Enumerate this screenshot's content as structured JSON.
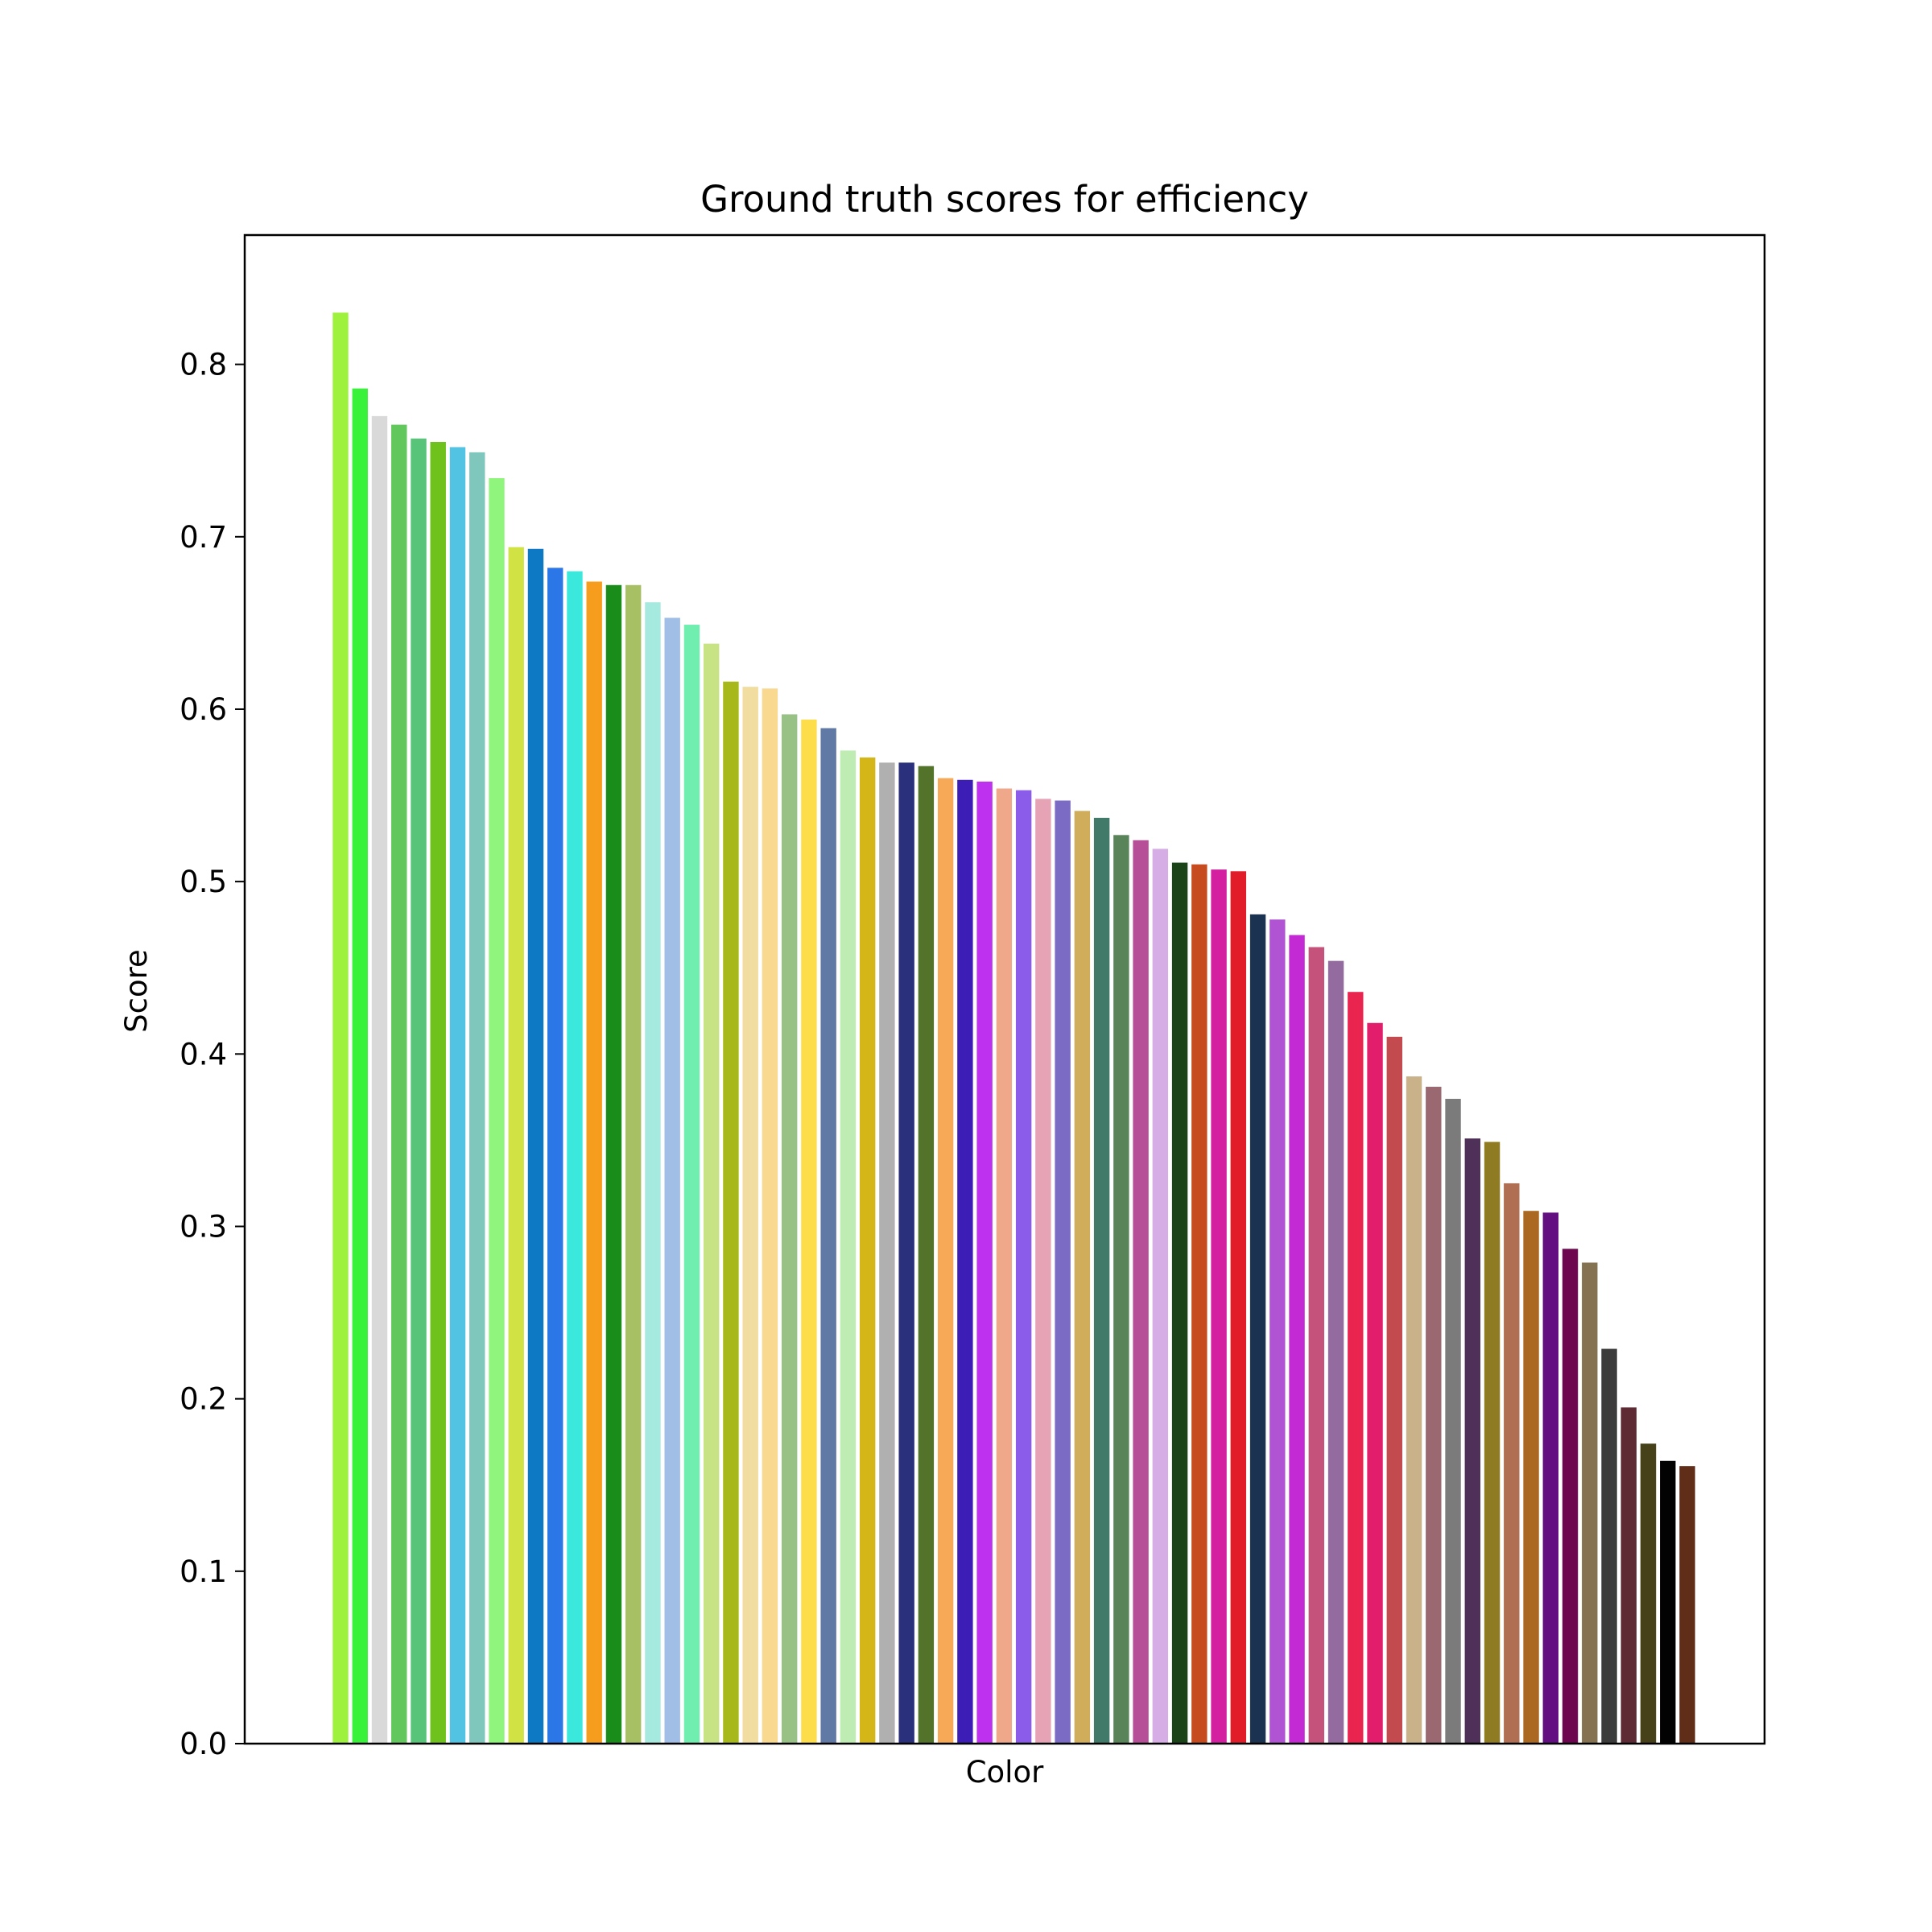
{
  "chart_data": {
    "type": "bar",
    "title": "Ground truth scores for efficiency",
    "xlabel": "Color",
    "ylabel": "Score",
    "ylim": [
      0,
      0.875
    ],
    "yticks": [
      "0.0",
      "0.1",
      "0.2",
      "0.3",
      "0.4",
      "0.5",
      "0.6",
      "0.7",
      "0.8"
    ],
    "grid": false,
    "values": [
      0.83,
      0.786,
      0.77,
      0.765,
      0.757,
      0.755,
      0.752,
      0.749,
      0.734,
      0.694,
      0.693,
      0.682,
      0.68,
      0.674,
      0.672,
      0.672,
      0.662,
      0.653,
      0.649,
      0.638,
      0.616,
      0.613,
      0.612,
      0.597,
      0.594,
      0.589,
      0.576,
      0.572,
      0.569,
      0.569,
      0.567,
      0.56,
      0.559,
      0.558,
      0.554,
      0.553,
      0.548,
      0.547,
      0.541,
      0.537,
      0.527,
      0.524,
      0.519,
      0.511,
      0.51,
      0.507,
      0.506,
      0.481,
      0.478,
      0.469,
      0.462,
      0.454,
      0.436,
      0.418,
      0.41,
      0.387,
      0.381,
      0.374,
      0.351,
      0.349,
      0.325,
      0.309,
      0.308,
      0.287,
      0.279,
      0.229,
      0.195,
      0.174,
      0.164,
      0.161
    ],
    "colors": [
      "#9ef23e",
      "#38f23a",
      "#d9d9d9",
      "#62c75c",
      "#57c47a",
      "#6fc21c",
      "#52c3e3",
      "#7fc7bc",
      "#8ff57c",
      "#d1e344",
      "#0d78c4",
      "#2c77e8",
      "#3ae8dc",
      "#f79d1e",
      "#1a8c1a",
      "#a7c063",
      "#a5e9df",
      "#a1bee6",
      "#70eeb0",
      "#c8e384",
      "#a7b91a",
      "#f1dd9f",
      "#f8d98f",
      "#97c185",
      "#fddd4a",
      "#6079a5",
      "#bfecb3",
      "#d5b618",
      "#b0b0b0",
      "#2a307c",
      "#53732a",
      "#f8a958",
      "#3c1eb7",
      "#be32ef",
      "#f0a88a",
      "#8b5be9",
      "#e5a3b5",
      "#7b6bc5",
      "#cfad5b",
      "#417a68",
      "#598459",
      "#b74f98",
      "#d6aee5",
      "#1b4519",
      "#c64b1f",
      "#d41fa1",
      "#e21d2a",
      "#1b3350",
      "#b154d4",
      "#c42ad3",
      "#c4527a",
      "#946b9f",
      "#e8244f",
      "#e21e6c",
      "#c34a4f",
      "#c9b289",
      "#9a6871",
      "#7b7b7b",
      "#4f3058",
      "#8f7b21",
      "#b06e53",
      "#ab6821",
      "#620f82",
      "#6d064f",
      "#857250",
      "#3c3c3c",
      "#5e2b34",
      "#47411a",
      "#020202",
      "#602d19"
    ]
  }
}
